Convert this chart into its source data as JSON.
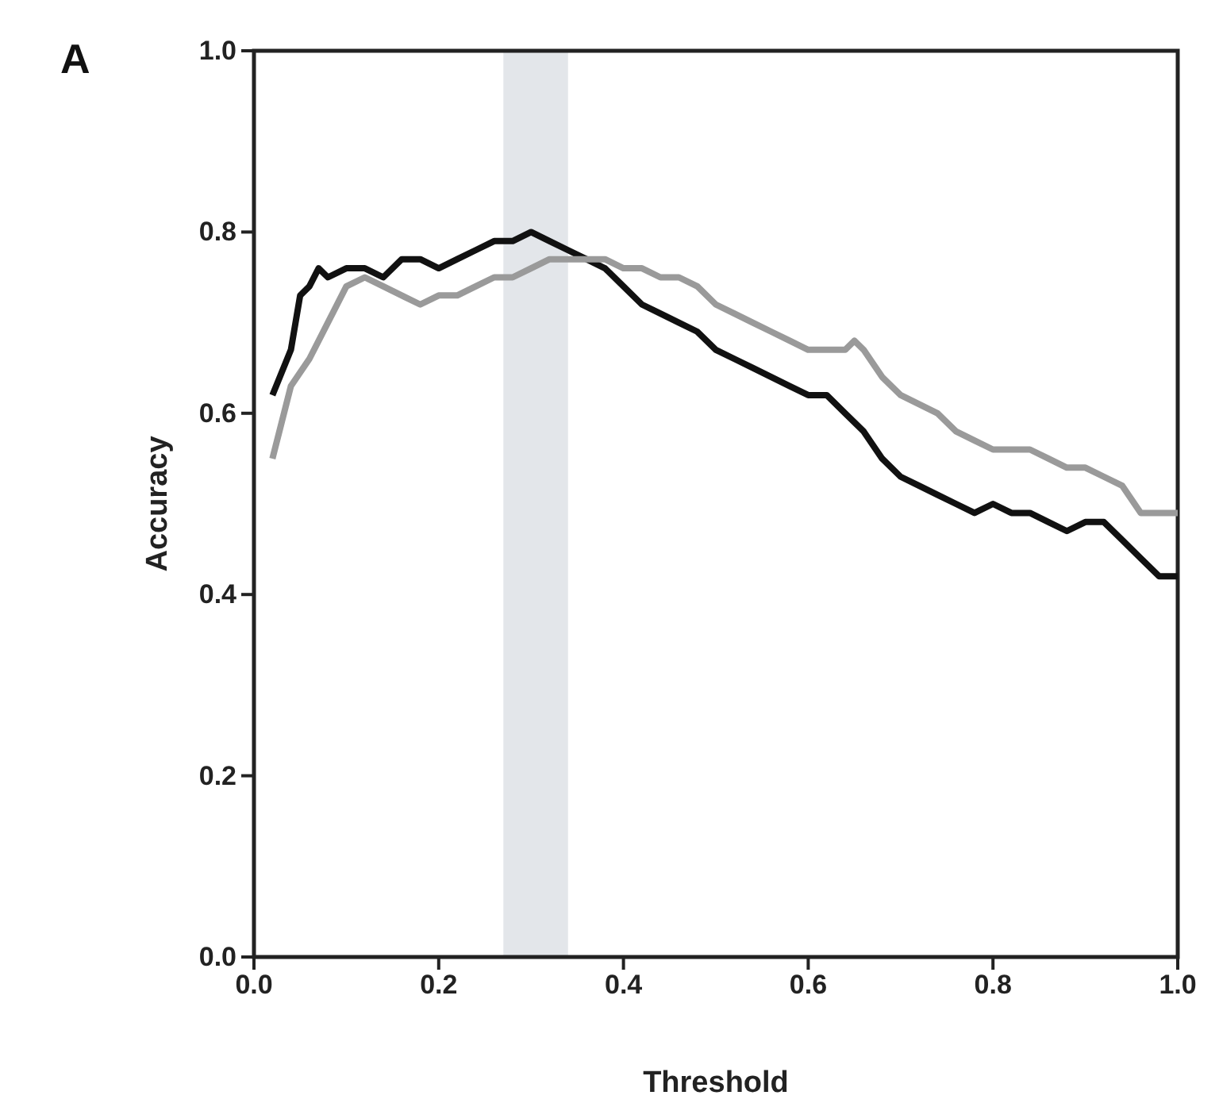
{
  "chart_data": {
    "type": "line",
    "xlabel": "Threshold",
    "ylabel": "Accuracy",
    "annotations": [
      "A"
    ],
    "xlim": [
      0,
      1
    ],
    "ylim": [
      0,
      1
    ],
    "xticks": [
      {
        "value": 0,
        "label": "0.0"
      },
      {
        "value": 0.2,
        "label": "0.2"
      },
      {
        "value": 0.4,
        "label": "0.4"
      },
      {
        "value": 0.6,
        "label": "0.6"
      },
      {
        "value": 0.8,
        "label": "0.8"
      },
      {
        "value": 1,
        "label": "1.0"
      }
    ],
    "yticks": [
      {
        "value": 0,
        "label": "0.0"
      },
      {
        "value": 0.2,
        "label": "0.2"
      },
      {
        "value": 0.4,
        "label": "0.4"
      },
      {
        "value": 0.6,
        "label": "0.6"
      },
      {
        "value": 0.8,
        "label": "0.8"
      },
      {
        "value": 1,
        "label": "1.0"
      }
    ],
    "grid": false,
    "marker": "none",
    "line_style": "solid",
    "bands": [
      {
        "axis": "x",
        "from": 0.27,
        "to": 0.34,
        "color": "#e3e6ea"
      }
    ],
    "series": [
      {
        "color": "#111111",
        "x": [
          0.02,
          0.04,
          0.05,
          0.06,
          0.07,
          0.08,
          0.1,
          0.12,
          0.14,
          0.16,
          0.18,
          0.2,
          0.22,
          0.24,
          0.26,
          0.28,
          0.3,
          0.32,
          0.34,
          0.36,
          0.38,
          0.4,
          0.42,
          0.44,
          0.46,
          0.48,
          0.5,
          0.52,
          0.54,
          0.56,
          0.58,
          0.6,
          0.62,
          0.64,
          0.66,
          0.68,
          0.7,
          0.72,
          0.74,
          0.76,
          0.78,
          0.8,
          0.82,
          0.84,
          0.86,
          0.88,
          0.9,
          0.92,
          0.94,
          0.96,
          0.98,
          1.0
        ],
        "values": [
          0.62,
          0.67,
          0.73,
          0.74,
          0.76,
          0.75,
          0.76,
          0.76,
          0.75,
          0.77,
          0.77,
          0.76,
          0.77,
          0.78,
          0.79,
          0.79,
          0.8,
          0.79,
          0.78,
          0.77,
          0.76,
          0.74,
          0.72,
          0.71,
          0.7,
          0.69,
          0.67,
          0.66,
          0.65,
          0.64,
          0.63,
          0.62,
          0.62,
          0.6,
          0.58,
          0.55,
          0.53,
          0.52,
          0.51,
          0.5,
          0.49,
          0.5,
          0.49,
          0.49,
          0.48,
          0.47,
          0.48,
          0.48,
          0.46,
          0.44,
          0.42,
          0.42
        ]
      },
      {
        "color": "#9a9a9a",
        "x": [
          0.02,
          0.03,
          0.04,
          0.06,
          0.08,
          0.1,
          0.12,
          0.14,
          0.16,
          0.18,
          0.2,
          0.22,
          0.24,
          0.26,
          0.28,
          0.3,
          0.32,
          0.34,
          0.36,
          0.38,
          0.4,
          0.42,
          0.44,
          0.46,
          0.48,
          0.5,
          0.52,
          0.54,
          0.56,
          0.58,
          0.6,
          0.62,
          0.64,
          0.65,
          0.66,
          0.68,
          0.7,
          0.72,
          0.74,
          0.76,
          0.78,
          0.8,
          0.82,
          0.84,
          0.86,
          0.88,
          0.9,
          0.92,
          0.94,
          0.96,
          0.98,
          1.0
        ],
        "values": [
          0.55,
          0.59,
          0.63,
          0.66,
          0.7,
          0.74,
          0.75,
          0.74,
          0.73,
          0.72,
          0.73,
          0.73,
          0.74,
          0.75,
          0.75,
          0.76,
          0.77,
          0.77,
          0.77,
          0.77,
          0.76,
          0.76,
          0.75,
          0.75,
          0.74,
          0.72,
          0.71,
          0.7,
          0.69,
          0.68,
          0.67,
          0.67,
          0.67,
          0.68,
          0.67,
          0.64,
          0.62,
          0.61,
          0.6,
          0.58,
          0.57,
          0.56,
          0.56,
          0.56,
          0.55,
          0.54,
          0.54,
          0.53,
          0.52,
          0.49,
          0.49,
          0.49
        ]
      }
    ]
  }
}
